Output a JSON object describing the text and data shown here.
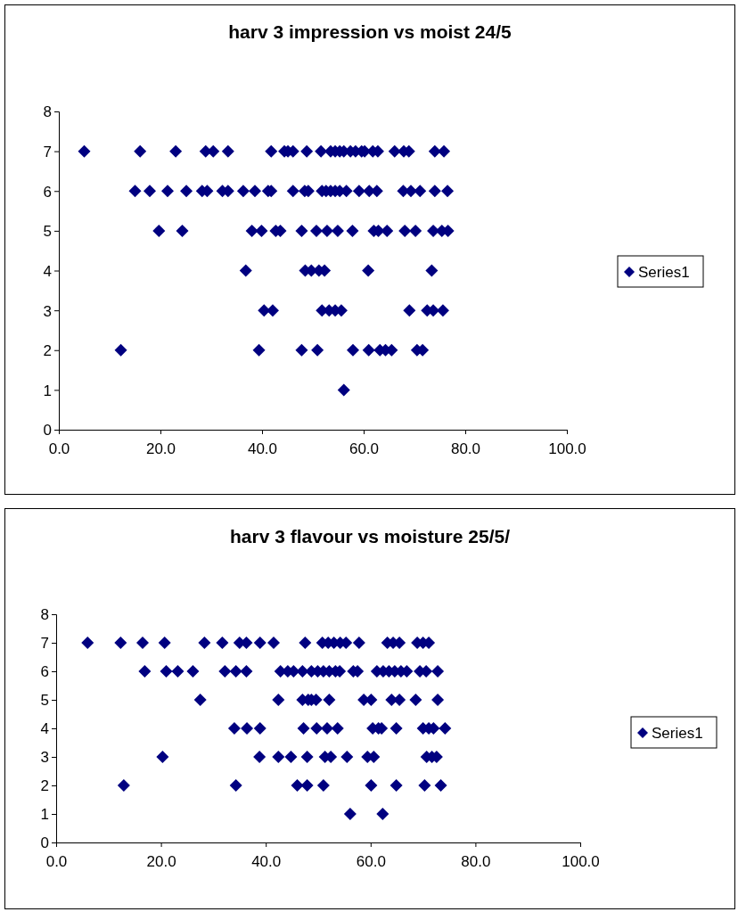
{
  "chart_data": [
    {
      "type": "scatter",
      "title": "harv 3 impression vs moist 24/5",
      "xlim": [
        0,
        100
      ],
      "xticks": [
        {
          "value": 0,
          "label": "0.0"
        },
        {
          "value": 20,
          "label": "20.0"
        },
        {
          "value": 40,
          "label": "40.0"
        },
        {
          "value": 60,
          "label": "60.0"
        },
        {
          "value": 80,
          "label": "80.0"
        },
        {
          "value": 100,
          "label": "100.0"
        }
      ],
      "ylim": [
        0,
        8
      ],
      "yticks": [
        0,
        1,
        2,
        3,
        4,
        5,
        6,
        7,
        8
      ],
      "grid": false,
      "legend": "right",
      "marker": "diamond",
      "series": [
        {
          "name": "Series1",
          "color": "#000080",
          "x": [
            5.0,
            16.0,
            23.0,
            28.9,
            30.4,
            33.3,
            41.8,
            44.4,
            45.1,
            46.1,
            48.8,
            51.6,
            53.5,
            54.4,
            55.3,
            56.1,
            57.4,
            58.4,
            59.6,
            60.2,
            61.8,
            62.8,
            66.1,
            67.9,
            68.9,
            74.0,
            75.8,
            15.0,
            17.9,
            21.4,
            25.1,
            28.2,
            29.2,
            32.2,
            33.3,
            36.3,
            38.6,
            41.2,
            41.8,
            46.1,
            48.4,
            49.1,
            51.8,
            52.6,
            53.5,
            54.4,
            55.3,
            56.6,
            59.1,
            61.1,
            62.6,
            67.8,
            69.3,
            71.1,
            74.0,
            76.5,
            19.7,
            24.3,
            38.0,
            39.9,
            42.7,
            43.6,
            47.8,
            50.7,
            52.8,
            54.9,
            57.8,
            62.0,
            62.9,
            64.6,
            68.1,
            70.2,
            73.7,
            75.4,
            76.6,
            36.8,
            48.5,
            49.7,
            51.2,
            52.3,
            60.9,
            73.4,
            40.4,
            42.1,
            51.8,
            53.2,
            54.4,
            55.6,
            69.0,
            72.5,
            73.7,
            75.6,
            12.2,
            39.4,
            47.8,
            50.9,
            57.9,
            61.0,
            63.2,
            64.3,
            65.5,
            70.5,
            71.6,
            56.1
          ],
          "values": [
            7,
            7,
            7,
            7,
            7,
            7,
            7,
            7,
            7,
            7,
            7,
            7,
            7,
            7,
            7,
            7,
            7,
            7,
            7,
            7,
            7,
            7,
            7,
            7,
            7,
            7,
            7,
            6,
            6,
            6,
            6,
            6,
            6,
            6,
            6,
            6,
            6,
            6,
            6,
            6,
            6,
            6,
            6,
            6,
            6,
            6,
            6,
            6,
            6,
            6,
            6,
            6,
            6,
            6,
            6,
            6,
            5,
            5,
            5,
            5,
            5,
            5,
            5,
            5,
            5,
            5,
            5,
            5,
            5,
            5,
            5,
            5,
            5,
            5,
            5,
            4,
            4,
            4,
            4,
            4,
            4,
            4,
            3,
            3,
            3,
            3,
            3,
            3,
            3,
            3,
            3,
            3,
            2,
            2,
            2,
            2,
            2,
            2,
            2,
            2,
            2,
            2,
            2,
            1
          ]
        }
      ]
    },
    {
      "type": "scatter",
      "title": "harv 3 flavour vs moisture 25/5/",
      "xlim": [
        0,
        100
      ],
      "xticks": [
        {
          "value": 0,
          "label": "0.0"
        },
        {
          "value": 20,
          "label": "20.0"
        },
        {
          "value": 40,
          "label": "40.0"
        },
        {
          "value": 60,
          "label": "60.0"
        },
        {
          "value": 80,
          "label": "80.0"
        },
        {
          "value": 100,
          "label": "100.0"
        }
      ],
      "ylim": [
        0,
        8
      ],
      "yticks": [
        0,
        1,
        2,
        3,
        4,
        5,
        6,
        7,
        8
      ],
      "grid": false,
      "legend": "right",
      "marker": "diamond",
      "series": [
        {
          "name": "Series1",
          "color": "#000080",
          "x": [
            6.0,
            12.3,
            16.5,
            20.7,
            28.3,
            31.7,
            35.0,
            36.3,
            38.9,
            41.5,
            47.5,
            50.8,
            51.9,
            53.0,
            54.2,
            55.3,
            57.8,
            63.2,
            64.3,
            65.5,
            68.9,
            70.0,
            71.1,
            16.9,
            21.0,
            23.2,
            26.1,
            32.2,
            34.3,
            36.3,
            42.8,
            44.2,
            45.3,
            47.0,
            48.7,
            49.9,
            51.0,
            52.1,
            53.3,
            54.1,
            56.7,
            57.5,
            61.2,
            62.4,
            63.5,
            64.6,
            65.8,
            66.9,
            69.4,
            70.6,
            72.8,
            27.5,
            42.4,
            47.0,
            48.1,
            48.7,
            49.6,
            52.1,
            58.7,
            60.1,
            64.0,
            65.5,
            68.6,
            72.8,
            34.0,
            36.4,
            38.9,
            47.2,
            49.7,
            51.7,
            53.7,
            60.4,
            61.5,
            62.1,
            64.9,
            70.0,
            71.1,
            72.0,
            74.2,
            20.3,
            38.8,
            42.4,
            44.8,
            47.9,
            51.3,
            52.4,
            55.5,
            59.4,
            60.6,
            70.7,
            71.7,
            72.6,
            12.9,
            34.3,
            46.0,
            47.9,
            51.0,
            60.1,
            64.9,
            70.3,
            73.4,
            56.1,
            62.3
          ],
          "values": [
            7,
            7,
            7,
            7,
            7,
            7,
            7,
            7,
            7,
            7,
            7,
            7,
            7,
            7,
            7,
            7,
            7,
            7,
            7,
            7,
            7,
            7,
            7,
            6,
            6,
            6,
            6,
            6,
            6,
            6,
            6,
            6,
            6,
            6,
            6,
            6,
            6,
            6,
            6,
            6,
            6,
            6,
            6,
            6,
            6,
            6,
            6,
            6,
            6,
            6,
            6,
            5,
            5,
            5,
            5,
            5,
            5,
            5,
            5,
            5,
            5,
            5,
            5,
            5,
            4,
            4,
            4,
            4,
            4,
            4,
            4,
            4,
            4,
            4,
            4,
            4,
            4,
            4,
            4,
            3,
            3,
            3,
            3,
            3,
            3,
            3,
            3,
            3,
            3,
            3,
            3,
            3,
            2,
            2,
            2,
            2,
            2,
            2,
            2,
            2,
            2,
            1,
            1
          ]
        }
      ]
    }
  ]
}
